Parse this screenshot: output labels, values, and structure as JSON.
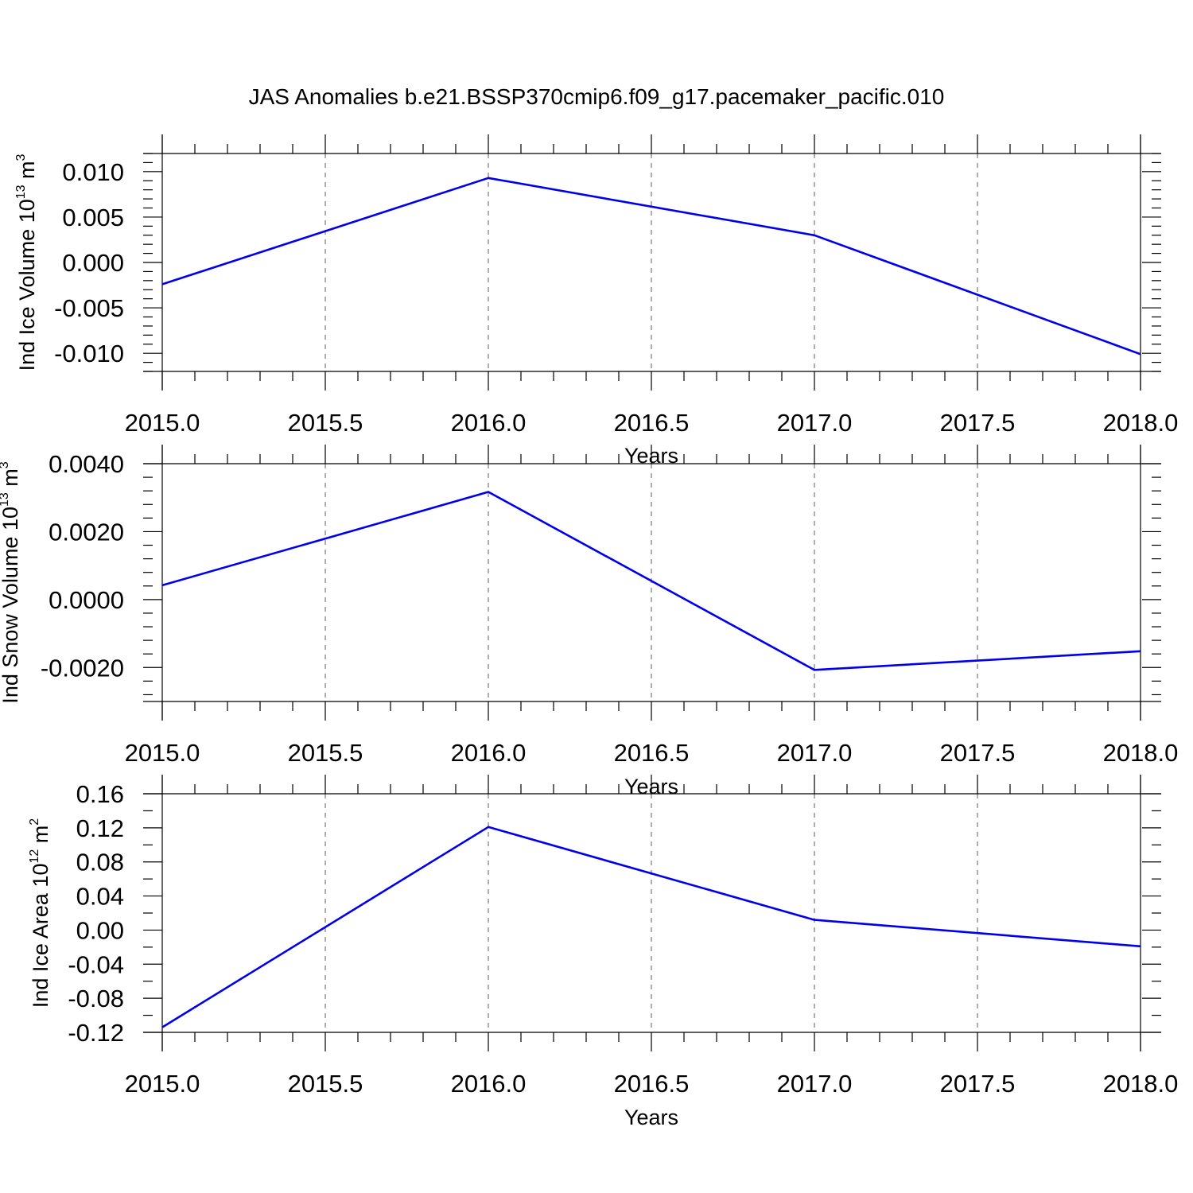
{
  "figure": {
    "title": "JAS Anomalies b.e21.BSSP370cmip6.f09_g17.pacemaker_pacific.010"
  },
  "chart_data": [
    {
      "type": "line",
      "ylabel": "Ind Ice Volume 10",
      "ylabel_exponent": "13",
      "ylabel_unit": " m",
      "ylabel_unit_exponent": "3",
      "xlabel": "Years",
      "xlim": [
        2015.0,
        2018.0
      ],
      "ylim": [
        -0.012,
        0.012
      ],
      "x_ticks": [
        "2015.0",
        "2015.5",
        "2016.0",
        "2016.5",
        "2017.0",
        "2017.5",
        "2018.0"
      ],
      "y_ticks": [
        "0.010",
        "0.005",
        "0.000",
        "-0.005",
        "-0.010"
      ],
      "grid": true,
      "line_color": "#0000ee",
      "series": [
        {
          "x": [
            2015,
            2016,
            2017,
            2018
          ],
          "values": [
            -0.0024,
            0.0093,
            0.003,
            -0.0101
          ]
        }
      ]
    },
    {
      "type": "line",
      "ylabel": "Ind Snow Volume 10",
      "ylabel_exponent": "13",
      "ylabel_unit": " m",
      "ylabel_unit_exponent": "3",
      "xlabel": "Years",
      "xlim": [
        2015.0,
        2018.0
      ],
      "ylim": [
        -0.003,
        0.004
      ],
      "x_ticks": [
        "2015.0",
        "2015.5",
        "2016.0",
        "2016.5",
        "2017.0",
        "2017.5",
        "2018.0"
      ],
      "y_ticks": [
        "0.0040",
        "0.0020",
        "0.0000",
        "-0.0020"
      ],
      "grid": true,
      "line_color": "#0000ee",
      "series": [
        {
          "x": [
            2015,
            2016,
            2017,
            2018
          ],
          "values": [
            0.00042,
            0.00317,
            -0.00207,
            -0.00152
          ]
        }
      ]
    },
    {
      "type": "line",
      "ylabel": "Ind Ice Area 10",
      "ylabel_exponent": "12",
      "ylabel_unit": " m",
      "ylabel_unit_exponent": "2",
      "xlabel": "Years",
      "xlim": [
        2015.0,
        2018.0
      ],
      "ylim": [
        -0.12,
        0.16
      ],
      "x_ticks": [
        "2015.0",
        "2015.5",
        "2016.0",
        "2016.5",
        "2017.0",
        "2017.5",
        "2018.0"
      ],
      "y_ticks": [
        "0.16",
        "0.12",
        "0.08",
        "0.04",
        "0.00",
        "-0.04",
        "-0.08",
        "-0.12"
      ],
      "grid": true,
      "line_color": "#0000ee",
      "series": [
        {
          "x": [
            2015,
            2016,
            2017,
            2018
          ],
          "values": [
            -0.114,
            0.121,
            0.012,
            -0.019
          ]
        }
      ]
    }
  ]
}
